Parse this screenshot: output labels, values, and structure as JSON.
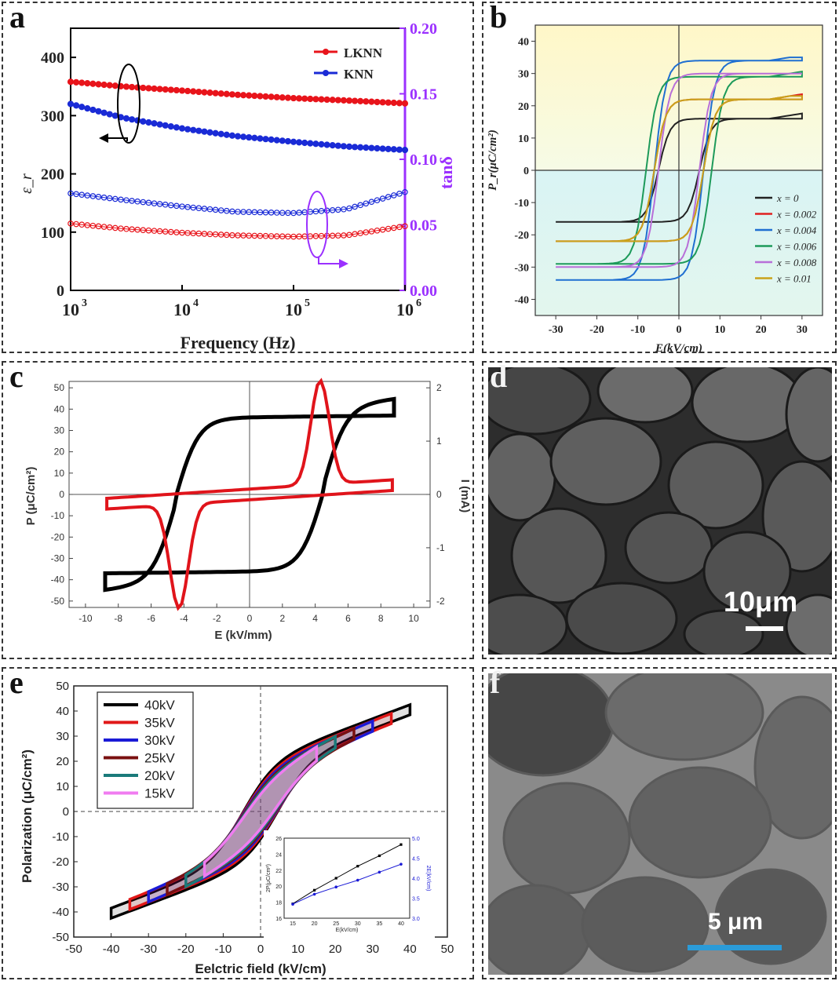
{
  "panels": {
    "a": {
      "label": "a",
      "chart_data": {
        "type": "line",
        "xlabel": "Frequency (Hz)",
        "ylabel_left": "ε_r",
        "ylabel_right": "tanδ",
        "x_scale": "log",
        "xlim": [
          1000,
          1000000
        ],
        "x_ticks": [
          "10",
          "10",
          "10",
          "10"
        ],
        "x_tick_exponents": [
          "3",
          "4",
          "5",
          "6"
        ],
        "ylim_left": [
          0,
          450
        ],
        "y_ticks_left": [
          "0",
          "100",
          "200",
          "300",
          "400"
        ],
        "ylim_right": [
          0,
          0.2
        ],
        "y_ticks_right": [
          "0.00",
          "0.05",
          "0.10",
          "0.15",
          "0.20"
        ],
        "legend": [
          "LKNN",
          "KNN"
        ],
        "legend_position": "top-right",
        "series": [
          {
            "name": "LKNN",
            "axis": "left",
            "marker": "filled",
            "color": "#e8141b",
            "x": [
              1000,
              3000,
              10000,
              30000,
              100000,
              300000,
              1000000
            ],
            "y": [
              358,
              350,
              343,
              336,
              330,
              326,
              321
            ]
          },
          {
            "name": "KNN",
            "axis": "left",
            "marker": "filled",
            "color": "#1a2bd6",
            "x": [
              1000,
              3000,
              10000,
              30000,
              100000,
              300000,
              1000000
            ],
            "y": [
              320,
              296,
              278,
              265,
              255,
              247,
              241
            ]
          },
          {
            "name": "LKNN",
            "axis": "right",
            "marker": "open",
            "color": "#e8141b",
            "x": [
              1000,
              3000,
              10000,
              30000,
              100000,
              300000,
              1000000
            ],
            "y": [
              0.051,
              0.047,
              0.044,
              0.042,
              0.041,
              0.042,
              0.049
            ]
          },
          {
            "name": "KNN",
            "axis": "right",
            "marker": "open",
            "color": "#1a2bd6",
            "x": [
              1000,
              3000,
              10000,
              30000,
              100000,
              300000,
              1000000
            ],
            "y": [
              0.074,
              0.069,
              0.064,
              0.06,
              0.059,
              0.062,
              0.075
            ]
          }
        ]
      }
    },
    "b": {
      "label": "b",
      "chart_data": {
        "type": "line",
        "xlabel": "E(kV/cm)",
        "ylabel": "P_r(μC/cm²)",
        "xlim": [
          -35,
          35
        ],
        "x_ticks": [
          "-30",
          "-20",
          "-10",
          "0",
          "10",
          "20",
          "30"
        ],
        "ylim": [
          -45,
          45
        ],
        "y_ticks": [
          "-40",
          "-30",
          "-20",
          "-10",
          "0",
          "10",
          "20",
          "30",
          "40"
        ],
        "legend_position": "bottom-right",
        "series": [
          {
            "name": "x = 0",
            "color": "#222222",
            "pmax": 20,
            "pr": 16,
            "ec": 5
          },
          {
            "name": "x = 0.002",
            "color": "#e02020",
            "pmax": 22,
            "pr": 22,
            "ec": 6
          },
          {
            "name": "x = 0.004",
            "color": "#1f6fd1",
            "pmax": 33,
            "pr": 34,
            "ec": 6
          },
          {
            "name": "x = 0.006",
            "color": "#1d9a5a",
            "pmax": 30,
            "pr": 29,
            "ec": 8
          },
          {
            "name": "x = 0.008",
            "color": "#b86fd8",
            "pmax": 28,
            "pr": 30,
            "ec": 5
          },
          {
            "name": "x = 0.01",
            "color": "#c9a21a",
            "pmax": 21,
            "pr": 22,
            "ec": 6
          }
        ]
      }
    },
    "c": {
      "label": "c",
      "chart_data": {
        "type": "line",
        "xlabel": "E (kV/mm)",
        "ylabel_left": "P (μC/cm²)",
        "ylabel_right": "I (mA)",
        "xlim": [
          -11,
          11
        ],
        "x_ticks": [
          "-10",
          "-8",
          "-6",
          "-4",
          "-2",
          "0",
          "2",
          "4",
          "6",
          "8",
          "10"
        ],
        "ylim_left": [
          -53,
          53
        ],
        "y_ticks_left": [
          "-50",
          "-40",
          "-30",
          "-20",
          "-10",
          "0",
          "10",
          "20",
          "30",
          "40",
          "50"
        ],
        "ylim_right": [
          -2.12,
          2.12
        ],
        "y_ticks_right": [
          "-2",
          "-1",
          "0",
          "1",
          "2"
        ],
        "series": [
          {
            "name": "P",
            "color": "#000000",
            "pmax": 45,
            "pr": 37,
            "ec": 4.5,
            "emax": 8.8
          },
          {
            "name": "I",
            "color": "#e0141b",
            "peak": 1.95,
            "peak_e": 4.3
          }
        ]
      }
    },
    "d": {
      "label": "d",
      "scale_bar": "10μm"
    },
    "e": {
      "label": "e",
      "chart_data": {
        "type": "line",
        "xlabel": "Eelctric field (kV/cm)",
        "ylabel": "Polarization (μC/cm²)",
        "xlim": [
          -50,
          50
        ],
        "x_ticks": [
          "-50",
          "-40",
          "-30",
          "-20",
          "-10",
          "0",
          "10",
          "20",
          "30",
          "40",
          "50"
        ],
        "ylim": [
          -50,
          50
        ],
        "y_ticks": [
          "-50",
          "-40",
          "-30",
          "-20",
          "-10",
          "0",
          "10",
          "20",
          "30",
          "40",
          "50"
        ],
        "legend_position": "top-left",
        "series": [
          {
            "name": "40kV",
            "color": "#000000",
            "emax": 40,
            "pmax": 40.5
          },
          {
            "name": "35kV",
            "color": "#e01818",
            "emax": 35,
            "pmax": 37
          },
          {
            "name": "30kV",
            "color": "#1b1bd6",
            "emax": 30,
            "pmax": 34
          },
          {
            "name": "25kV",
            "color": "#7a1010",
            "emax": 25,
            "pmax": 31
          },
          {
            "name": "20kV",
            "color": "#1a7a7a",
            "emax": 20,
            "pmax": 28
          },
          {
            "name": "15kV",
            "color": "#f07cf0",
            "emax": 15,
            "pmax": 24
          }
        ],
        "inset": {
          "xlabel": "E(kV/cm)",
          "ylabel_left": "2P(μC/cm²)",
          "ylabel_right": "2E(kV/cm)",
          "x_ticks": [
            "15",
            "20",
            "25",
            "30",
            "35",
            "40"
          ],
          "y_ticks_left": [
            "16",
            "18",
            "20",
            "22",
            "24",
            "26"
          ],
          "y_ticks_right": [
            "3.0",
            "3.5",
            "4.0",
            "4.5",
            "5.0"
          ],
          "series": [
            {
              "name": "2Pr",
              "color": "#000000",
              "x": [
                15,
                20,
                25,
                30,
                35,
                40
              ],
              "y": [
                17.8,
                19.5,
                21,
                22.5,
                23.8,
                25.2
              ]
            },
            {
              "name": "2Ec",
              "color": "#1b1bd6",
              "x": [
                15,
                20,
                25,
                30,
                35,
                40
              ],
              "y": [
                3.35,
                3.6,
                3.78,
                3.95,
                4.15,
                4.35
              ]
            }
          ]
        }
      }
    },
    "f": {
      "label": "f",
      "scale_bar": "5 μm"
    }
  }
}
